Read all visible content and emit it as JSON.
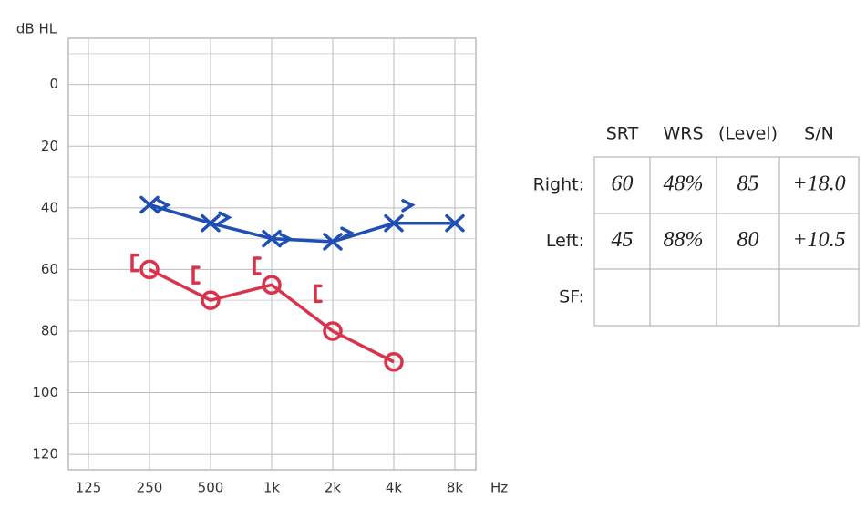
{
  "chart_data": {
    "type": "audiogram",
    "y_label": "dB HL",
    "x_unit": "Hz",
    "categories": [
      "125",
      "250",
      "500",
      "1k",
      "2k",
      "4k",
      "8k"
    ],
    "ylim": [
      -15,
      125
    ],
    "y_inverted": true,
    "yticks": [
      0,
      20,
      40,
      60,
      80,
      100,
      120
    ],
    "yticks_minor": [
      -10,
      10,
      30,
      50,
      70,
      90,
      110
    ],
    "grid": true,
    "series": [
      {
        "color": "#1f4fb5",
        "marker": "x",
        "line": true,
        "values": [
          null,
          39,
          45,
          50,
          51,
          45,
          45
        ]
      },
      {
        "color": "#1f4fb5",
        "marker": ">",
        "line": false,
        "values": [
          null,
          40,
          44,
          51,
          49,
          40,
          null
        ]
      },
      {
        "color": "#d9324a",
        "marker": "o",
        "line": true,
        "values": [
          null,
          60,
          70,
          65,
          80,
          90,
          null
        ]
      },
      {
        "color": "#d9324a",
        "marker": "[",
        "line": false,
        "values": [
          null,
          58,
          62,
          59,
          68,
          null,
          null
        ]
      }
    ]
  },
  "table": {
    "columns": [
      "SRT",
      "WRS",
      "(Level)",
      "S/N"
    ],
    "rows": [
      {
        "label": "Right:",
        "cells": [
          "60",
          "48%",
          "85",
          "+18.0"
        ]
      },
      {
        "label": "Left:",
        "cells": [
          "45",
          "88%",
          "80",
          "+10.5"
        ]
      },
      {
        "label": "SF:",
        "cells": []
      }
    ]
  }
}
